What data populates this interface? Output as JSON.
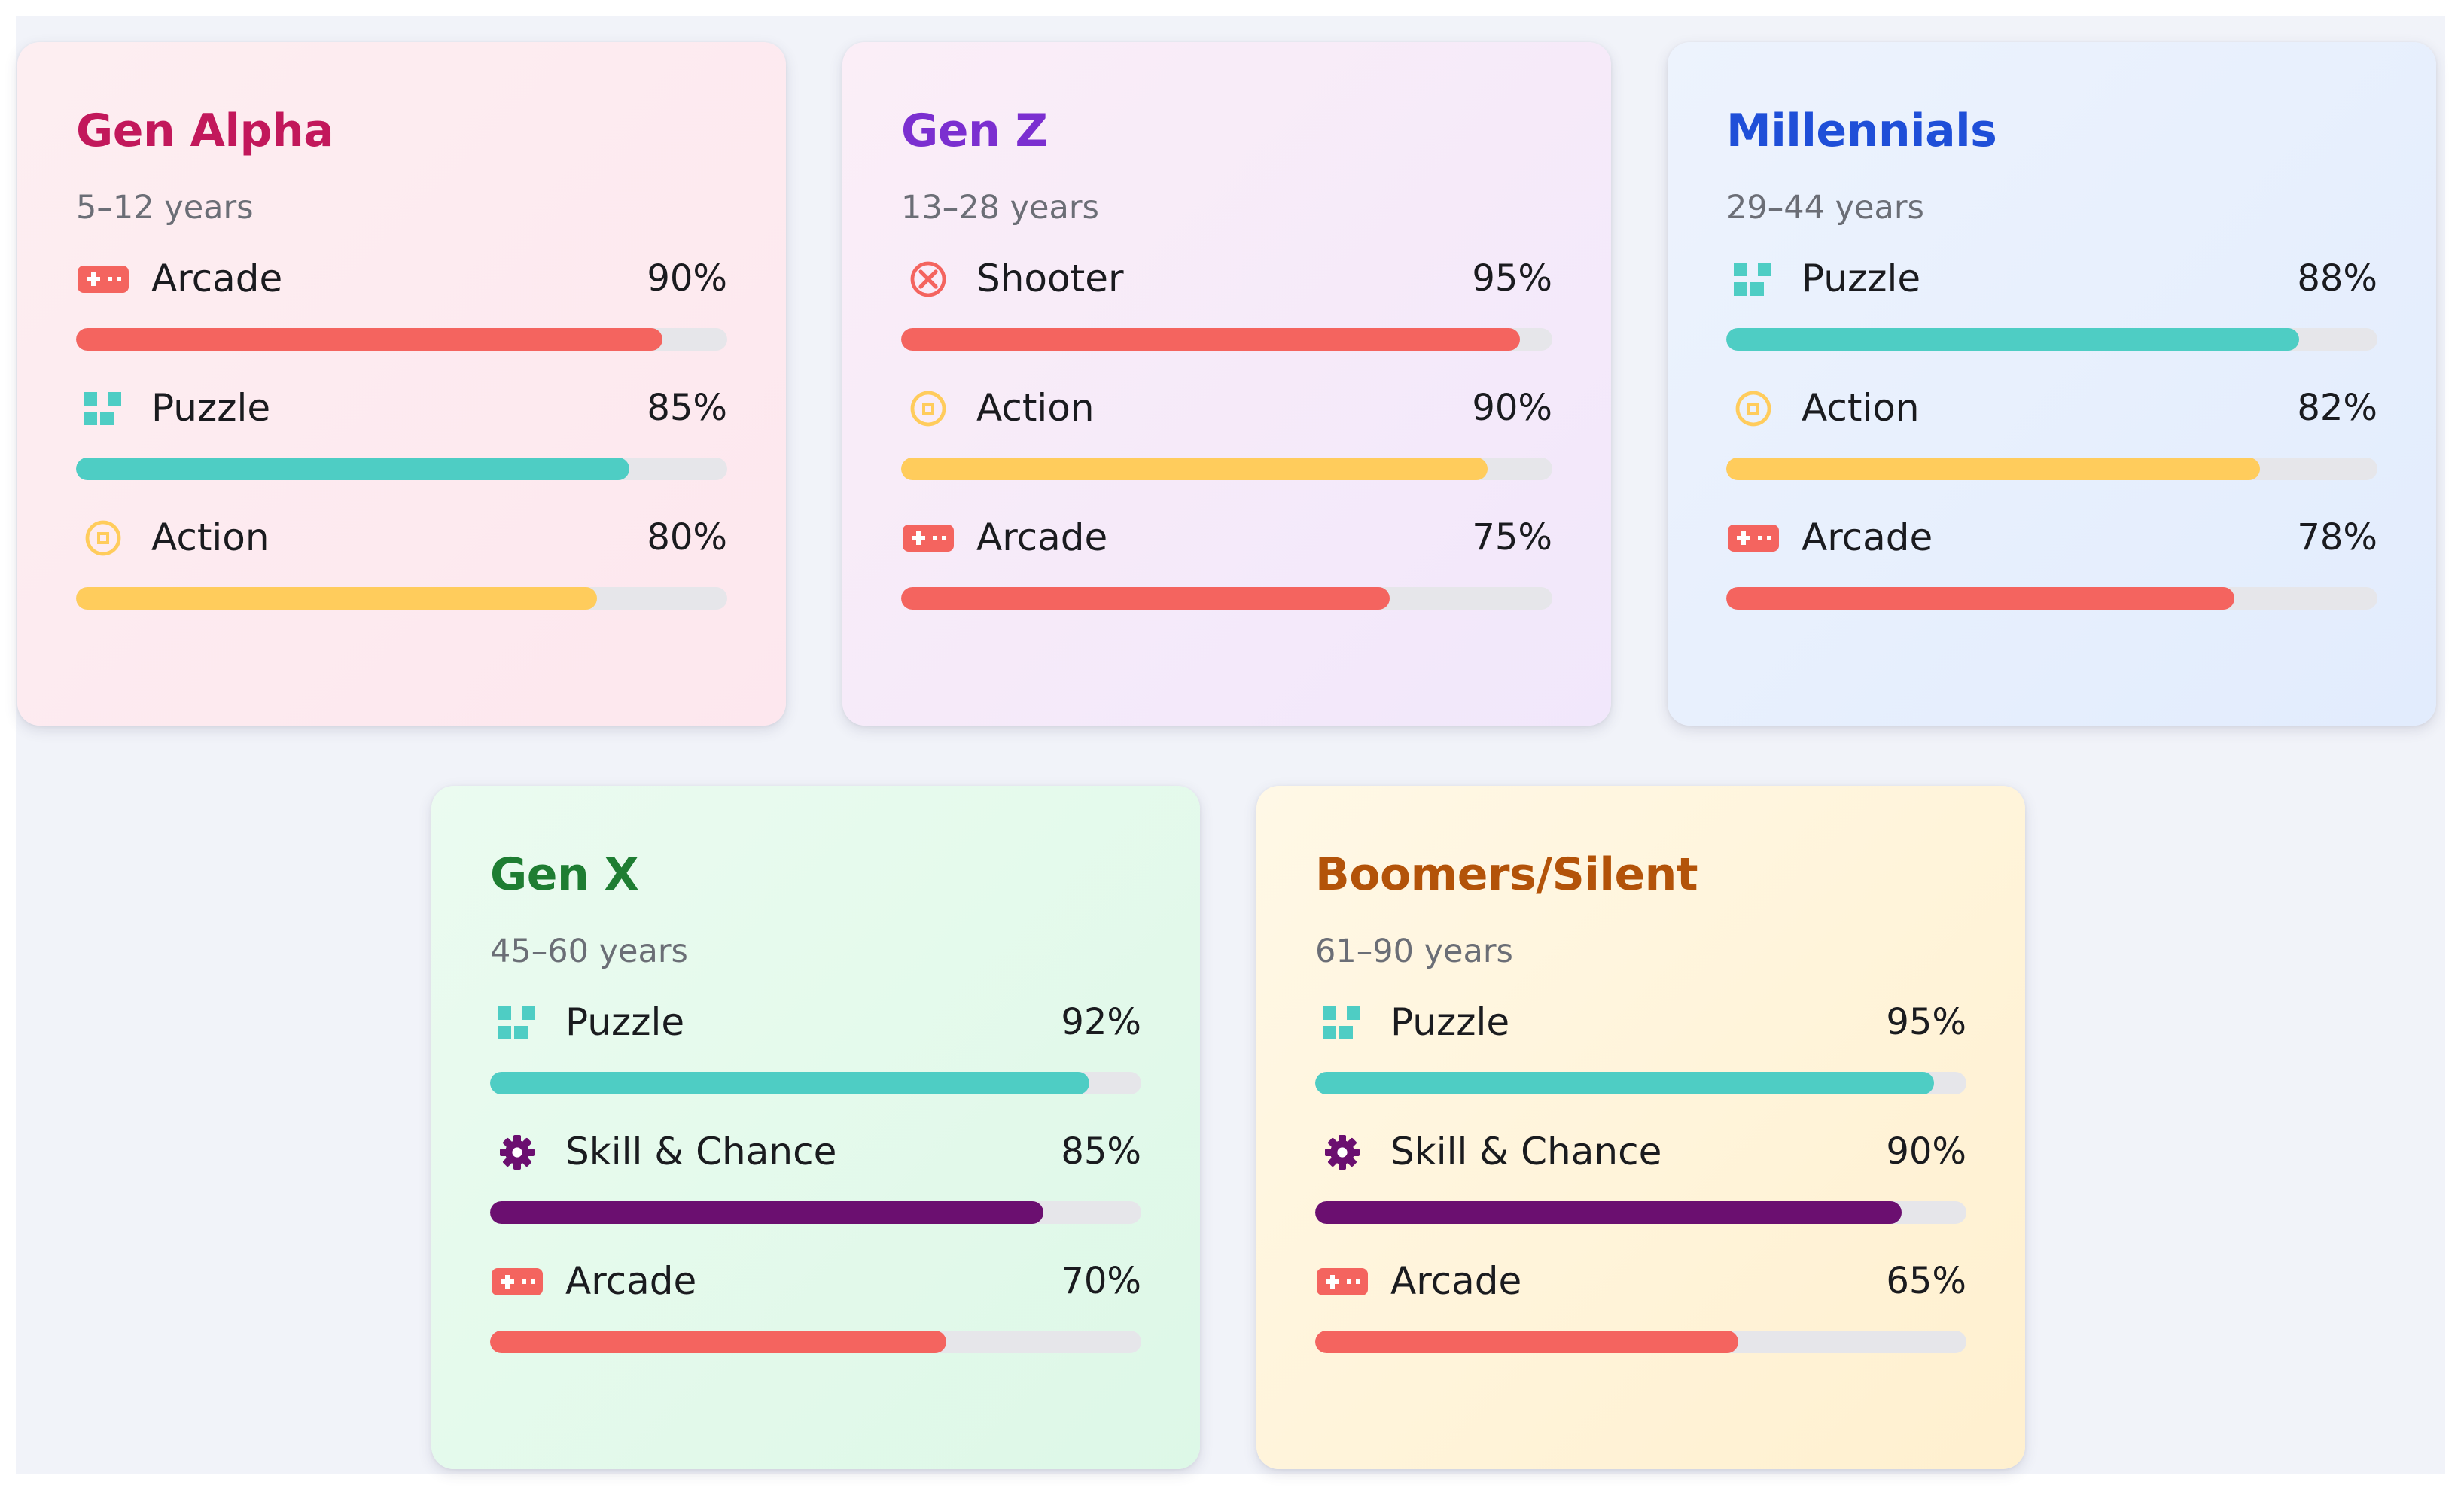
{
  "chart_data": {
    "type": "bar",
    "colors": {
      "Arcade": "#f4645f",
      "Puzzle": "#4ecdc4",
      "Action": "#ffcc5c",
      "Shooter": "#f4645f",
      "Skill & Chance": "#6b0f70"
    },
    "icons": {
      "Arcade": "gamepad-icon",
      "Puzzle": "puzzle-blocks-icon",
      "Action": "coin-icon",
      "Shooter": "crosshair-icon",
      "Skill & Chance": "gear-icon"
    },
    "generations": [
      {
        "name": "Gen Alpha",
        "ages": "5–12 years",
        "title_color": "#c2185b",
        "bg": [
          "#fdeef1",
          "#fde7ee"
        ],
        "genres": [
          {
            "label": "Arcade",
            "value": 90,
            "pct": "90%"
          },
          {
            "label": "Puzzle",
            "value": 85,
            "pct": "85%"
          },
          {
            "label": "Action",
            "value": 80,
            "pct": "80%"
          }
        ]
      },
      {
        "name": "Gen Z",
        "ages": "13–28 years",
        "title_color": "#7b2fd0",
        "bg": [
          "#fbeef7",
          "#f1e7fb"
        ],
        "genres": [
          {
            "label": "Shooter",
            "value": 95,
            "pct": "95%"
          },
          {
            "label": "Action",
            "value": 90,
            "pct": "90%"
          },
          {
            "label": "Arcade",
            "value": 75,
            "pct": "75%"
          }
        ]
      },
      {
        "name": "Millennials",
        "ages": "29–44 years",
        "title_color": "#1f4fd8",
        "bg": [
          "#edf3fd",
          "#e2ecfd"
        ],
        "genres": [
          {
            "label": "Puzzle",
            "value": 88,
            "pct": "88%"
          },
          {
            "label": "Action",
            "value": 82,
            "pct": "82%"
          },
          {
            "label": "Arcade",
            "value": 78,
            "pct": "78%"
          }
        ]
      },
      {
        "name": "Gen X",
        "ages": "45–60 years",
        "title_color": "#1e7d32",
        "bg": [
          "#ebfbf0",
          "#ddf8e7"
        ],
        "genres": [
          {
            "label": "Puzzle",
            "value": 92,
            "pct": "92%"
          },
          {
            "label": "Skill & Chance",
            "value": 85,
            "pct": "85%"
          },
          {
            "label": "Arcade",
            "value": 70,
            "pct": "70%"
          }
        ]
      },
      {
        "name": "Boomers/Silent",
        "ages": "61–90 years",
        "title_color": "#b35309",
        "bg": [
          "#fff8e6",
          "#fff0cf"
        ],
        "genres": [
          {
            "label": "Puzzle",
            "value": 95,
            "pct": "95%"
          },
          {
            "label": "Skill & Chance",
            "value": 90,
            "pct": "90%"
          },
          {
            "label": "Arcade",
            "value": 65,
            "pct": "65%"
          }
        ]
      }
    ],
    "xlim": [
      0,
      100
    ]
  }
}
